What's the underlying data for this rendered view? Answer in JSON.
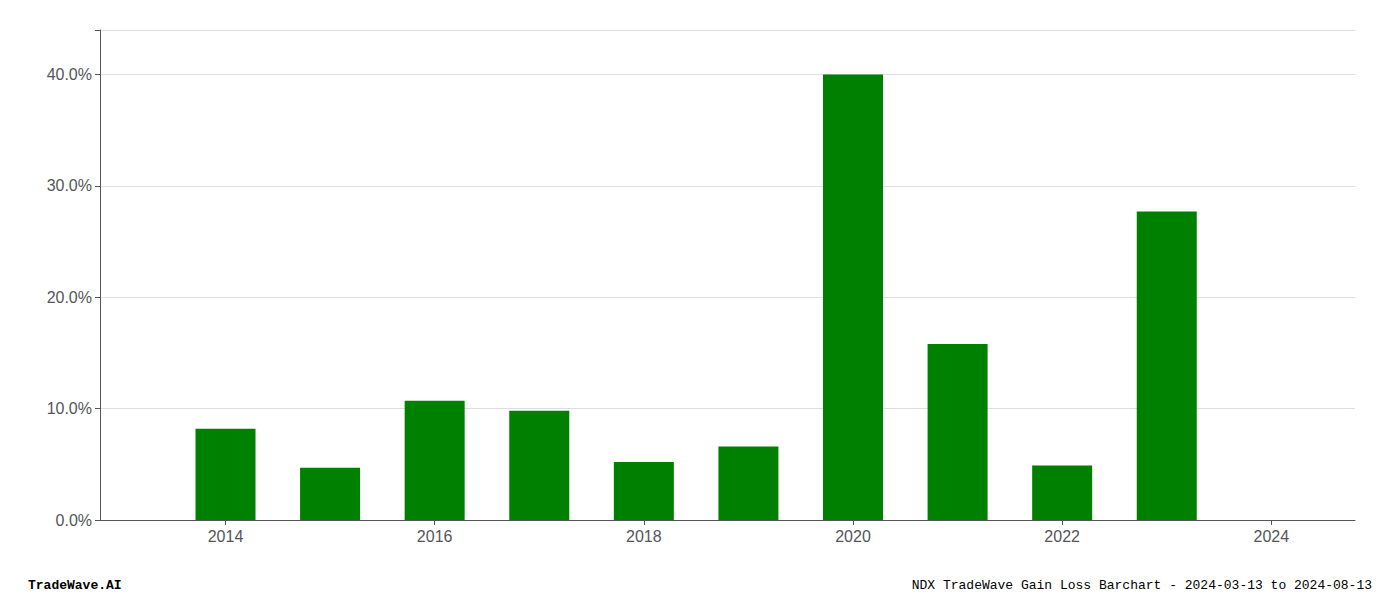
{
  "chart_data": {
    "type": "bar",
    "x": [
      2014,
      2015,
      2016,
      2017,
      2018,
      2019,
      2020,
      2021,
      2022,
      2023
    ],
    "values": [
      0.082,
      0.047,
      0.107,
      0.098,
      0.052,
      0.066,
      0.4,
      0.158,
      0.049,
      0.277
    ],
    "color": "#008000",
    "xlim": [
      2012.8,
      2024.8
    ],
    "xticks": [
      2014,
      2016,
      2018,
      2020,
      2022,
      2024
    ],
    "ylim": [
      0.0,
      0.44
    ],
    "yticks": [
      {
        "value": 0.0,
        "label": "0.0%"
      },
      {
        "value": 0.1,
        "label": "10.0%"
      },
      {
        "value": 0.2,
        "label": "20.0%"
      },
      {
        "value": 0.3,
        "label": "30.0%"
      },
      {
        "value": 0.4,
        "label": "40.0%"
      }
    ],
    "grid": true,
    "annotations": [
      "TradeWave.AI",
      "NDX TradeWave Gain Loss Barchart - 2024-03-13 to 2024-08-13"
    ]
  }
}
